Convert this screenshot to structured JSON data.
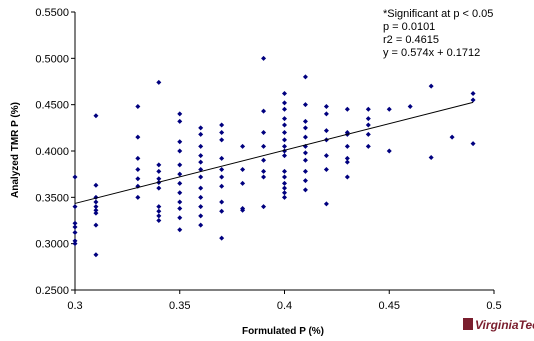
{
  "chart_data": {
    "type": "scatter",
    "xlabel": "Formulated P (%)",
    "ylabel": "Analyzed TMR P (%)",
    "color": "#00007f",
    "xlim": [
      0.3,
      0.5
    ],
    "xticks": [
      0.3,
      0.35,
      0.4,
      0.45,
      0.5
    ],
    "ylim": [
      0.25,
      0.55
    ],
    "yticks": [
      {
        "value": 0.25,
        "label": "0.2500"
      },
      {
        "value": 0.3,
        "label": "0.3000"
      },
      {
        "value": 0.35,
        "label": "0.3500"
      },
      {
        "value": 0.4,
        "label": "0.4000"
      },
      {
        "value": 0.45,
        "label": "0.4500"
      },
      {
        "value": 0.5,
        "label": "0.5000"
      },
      {
        "value": 0.55,
        "label": "0.5500"
      }
    ],
    "annotations": [
      "*Significant at p < 0.05",
      "p = 0.0101",
      "r2 = 0.4615",
      "y = 0.574x + 0.1712"
    ],
    "trendline": {
      "slope": 0.574,
      "intercept": 0.1712,
      "x": [
        0.3,
        0.49
      ]
    },
    "logo": "VirginiaTech",
    "x": [
      0.3,
      0.3,
      0.3,
      0.3,
      0.3,
      0.3,
      0.3,
      0.31,
      0.31,
      0.31,
      0.31,
      0.31,
      0.31,
      0.31,
      0.31,
      0.31,
      0.33,
      0.33,
      0.33,
      0.33,
      0.33,
      0.33,
      0.33,
      0.34,
      0.34,
      0.34,
      0.34,
      0.34,
      0.34,
      0.34,
      0.34,
      0.34,
      0.34,
      0.35,
      0.35,
      0.35,
      0.35,
      0.35,
      0.35,
      0.35,
      0.35,
      0.35,
      0.35,
      0.35,
      0.35,
      0.36,
      0.36,
      0.36,
      0.36,
      0.36,
      0.36,
      0.36,
      0.36,
      0.36,
      0.36,
      0.36,
      0.36,
      0.37,
      0.37,
      0.37,
      0.37,
      0.37,
      0.37,
      0.37,
      0.37,
      0.37,
      0.37,
      0.38,
      0.38,
      0.38,
      0.38,
      0.38,
      0.39,
      0.39,
      0.39,
      0.39,
      0.39,
      0.39,
      0.39,
      0.39,
      0.4,
      0.4,
      0.4,
      0.4,
      0.4,
      0.4,
      0.4,
      0.4,
      0.4,
      0.4,
      0.4,
      0.4,
      0.4,
      0.4,
      0.4,
      0.4,
      0.41,
      0.41,
      0.41,
      0.41,
      0.41,
      0.41,
      0.41,
      0.41,
      0.41,
      0.41,
      0.41,
      0.42,
      0.42,
      0.42,
      0.42,
      0.42,
      0.42,
      0.42,
      0.43,
      0.43,
      0.43,
      0.43,
      0.43,
      0.43,
      0.43,
      0.44,
      0.44,
      0.44,
      0.44,
      0.44,
      0.45,
      0.45,
      0.46,
      0.47,
      0.47,
      0.48,
      0.49,
      0.49,
      0.49
    ],
    "y": [
      0.372,
      0.34,
      0.322,
      0.318,
      0.312,
      0.303,
      0.3,
      0.438,
      0.363,
      0.35,
      0.345,
      0.34,
      0.336,
      0.333,
      0.32,
      0.288,
      0.448,
      0.415,
      0.392,
      0.38,
      0.37,
      0.362,
      0.35,
      0.474,
      0.385,
      0.378,
      0.37,
      0.366,
      0.36,
      0.34,
      0.335,
      0.33,
      0.325,
      0.44,
      0.432,
      0.41,
      0.4,
      0.385,
      0.375,
      0.365,
      0.355,
      0.345,
      0.338,
      0.328,
      0.315,
      0.425,
      0.418,
      0.405,
      0.395,
      0.388,
      0.38,
      0.372,
      0.36,
      0.35,
      0.34,
      0.33,
      0.32,
      0.428,
      0.42,
      0.412,
      0.392,
      0.38,
      0.372,
      0.362,
      0.345,
      0.335,
      0.306,
      0.405,
      0.38,
      0.365,
      0.338,
      0.336,
      0.5,
      0.443,
      0.42,
      0.405,
      0.39,
      0.378,
      0.372,
      0.34,
      0.462,
      0.452,
      0.445,
      0.435,
      0.428,
      0.42,
      0.412,
      0.405,
      0.4,
      0.395,
      0.378,
      0.372,
      0.365,
      0.36,
      0.355,
      0.35,
      0.48,
      0.45,
      0.432,
      0.425,
      0.415,
      0.405,
      0.398,
      0.39,
      0.378,
      0.368,
      0.358,
      0.448,
      0.44,
      0.422,
      0.412,
      0.395,
      0.38,
      0.343,
      0.445,
      0.42,
      0.418,
      0.405,
      0.392,
      0.388,
      0.372,
      0.445,
      0.435,
      0.428,
      0.418,
      0.405,
      0.445,
      0.4,
      0.448,
      0.47,
      0.393,
      0.415,
      0.462,
      0.455,
      0.408
    ]
  }
}
